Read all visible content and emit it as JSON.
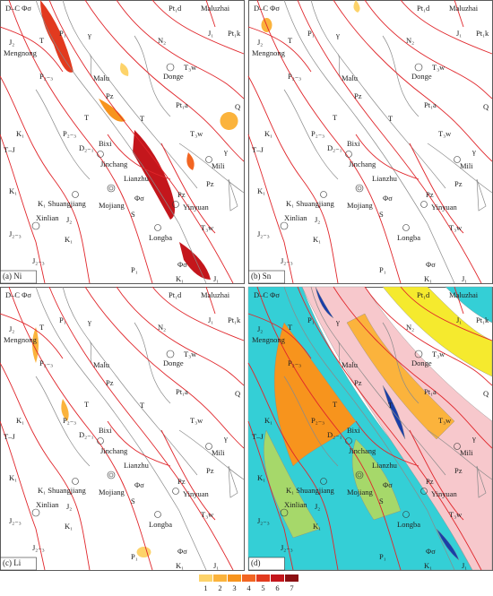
{
  "panels": [
    {
      "label": "(a) Ni"
    },
    {
      "label": "(b) Sn"
    },
    {
      "label": "(c) Li"
    },
    {
      "label": "(d)"
    }
  ],
  "map_labels": [
    "D–C Φσ",
    "P₁",
    "Pt₁d",
    "Maluzhai",
    "J₂",
    "Mengnong",
    "T",
    "γ",
    "N₂",
    "J₁",
    "Pt₁k",
    "P₂₋₃",
    "Malu",
    "Donge",
    "T₃w",
    "Pz",
    "Pt₁a",
    "Q",
    "T",
    "T",
    "P₂₋₃",
    "T₃w",
    "K₁",
    "T–J",
    "D₂₋₁",
    "Bixi",
    "γ",
    "Jinchang",
    "Mili",
    "Lianzhu",
    "Pz",
    "K₁",
    "K₁ Shuangjiang",
    "Φσ",
    "Mojiang",
    "Pz",
    "Yinyuan",
    "Xinlian",
    "J₂",
    "S",
    "T₃w",
    "J₂₋₃",
    "K₁",
    "Longba",
    "Φσ",
    "J₂₋₃",
    "P₁",
    "K₁",
    "J₁"
  ],
  "legend": {
    "items": [
      {
        "label": "1",
        "color": "#fdd36a"
      },
      {
        "label": "2",
        "color": "#fbb33c"
      },
      {
        "label": "3",
        "color": "#f7941d"
      },
      {
        "label": "4",
        "color": "#f26522"
      },
      {
        "label": "5",
        "color": "#e23a1f"
      },
      {
        "label": "6",
        "color": "#c4161c"
      },
      {
        "label": "7",
        "color": "#8b0f12"
      }
    ]
  }
}
